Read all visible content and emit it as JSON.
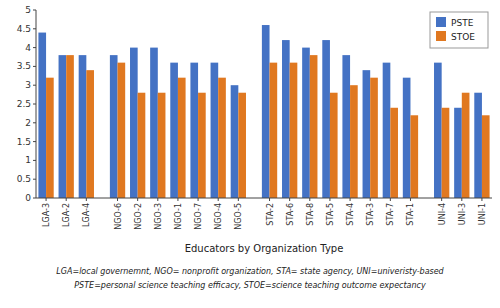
{
  "chart_data": {
    "type": "bar",
    "categories": [
      "LGA-3",
      "LGA-2",
      "LGA-4",
      "NGO-6",
      "NGO-2",
      "NGO-3",
      "NGO-1",
      "NGO-7",
      "NGO-4",
      "NGO-5",
      "STA-2",
      "STA-6",
      "STA-8",
      "STA-5",
      "STA-4",
      "STA-3",
      "STA-7",
      "STA-1",
      "UNI-4",
      "UNI-3",
      "UNI-1"
    ],
    "series": [
      {
        "name": "PSTE",
        "color": "#4472C4",
        "values": [
          4.4,
          3.8,
          3.8,
          3.8,
          4.0,
          4.0,
          3.6,
          3.6,
          3.6,
          3.0,
          4.6,
          4.2,
          4.0,
          4.2,
          3.8,
          3.4,
          3.6,
          3.2,
          3.6,
          2.4,
          2.8
        ]
      },
      {
        "name": "STOE",
        "color": "#E07820",
        "values": [
          3.2,
          3.8,
          3.4,
          3.6,
          2.8,
          2.8,
          3.2,
          2.8,
          3.2,
          2.8,
          3.6,
          3.6,
          3.8,
          2.8,
          3.0,
          3.2,
          2.4,
          2.2,
          2.4,
          2.8,
          2.2
        ]
      }
    ],
    "x_label": "Educators by Organization Type",
    "ylim": [
      0,
      5
    ],
    "yticks": [
      0,
      0.5,
      1.0,
      1.5,
      2.0,
      2.5,
      3.0,
      3.5,
      4.0,
      4.5,
      5.0
    ],
    "grid": false,
    "legend": "upper right",
    "annotations": [
      "LGA=local governemnt, NGO= nonprofit organization, STA= state agency, UNI=univeristy-based",
      "PSTE=personal science teaching efficacy, STOE=science teaching outcome expectancy"
    ]
  }
}
